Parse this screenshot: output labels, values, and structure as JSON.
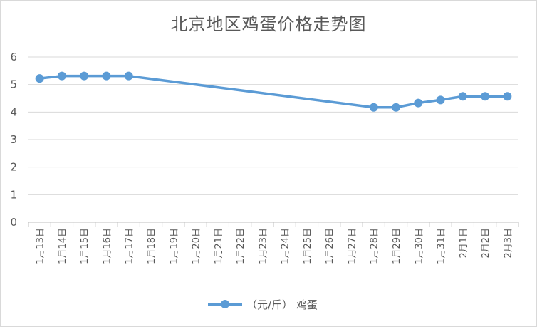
{
  "chart_data": {
    "type": "line",
    "title": "北京地区鸡蛋价格走势图",
    "categories": [
      "1月13日",
      "1月14日",
      "1月15日",
      "1月16日",
      "1月17日",
      "1月18日",
      "1月19日",
      "1月20日",
      "1月21日",
      "1月22日",
      "1月23日",
      "1月24日",
      "1月25日",
      "1月26日",
      "1月27日",
      "1月28日",
      "1月29日",
      "1月30日",
      "1月31日",
      "2月1日",
      "2月2日",
      "2月3日"
    ],
    "series": [
      {
        "name": "（元/斤） 鸡蛋",
        "values": [
          5.22,
          5.31,
          5.31,
          5.31,
          5.31,
          null,
          null,
          null,
          null,
          null,
          null,
          null,
          null,
          null,
          null,
          4.17,
          4.17,
          4.33,
          4.44,
          4.57,
          4.57,
          4.57
        ]
      }
    ],
    "ylim": [
      0,
      6
    ],
    "yticks": [
      0,
      1,
      2,
      3,
      4,
      5,
      6
    ],
    "grid": true,
    "legend": "bottom",
    "color": "#5b9bd5"
  }
}
